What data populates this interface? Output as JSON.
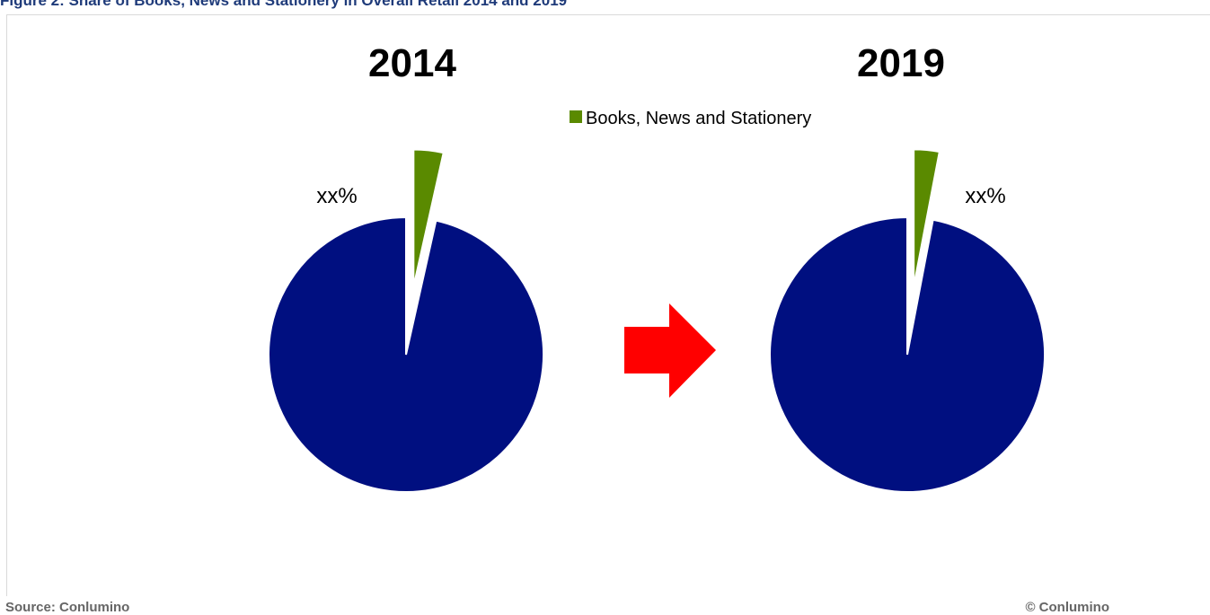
{
  "figure_title": "Figure 2: Share of Books, News and Stationery in Overall Retail 2014 and 2019",
  "source_label": "Source: Conlumino",
  "copyright_label": "© Conlumino",
  "chart_data": [
    {
      "type": "pie",
      "title": "2014",
      "slices": [
        {
          "name": "Books, News and Stationery",
          "value": 3.5,
          "color": "#5a8a00",
          "label": "xx%"
        },
        {
          "name": "",
          "value": 96.5,
          "color": "#000f80",
          "label": ""
        }
      ],
      "legend": {
        "show": false
      }
    },
    {
      "type": "pie",
      "title": "2019",
      "slices": [
        {
          "name": "Books, News and Stationery",
          "value": 3.0,
          "color": "#5a8a00",
          "label": "xx%"
        },
        {
          "name": "",
          "value": 97.0,
          "color": "#000f80",
          "label": ""
        }
      ],
      "legend": {
        "show": true,
        "placement": "top",
        "entries": [
          "Books, News and Stationery"
        ]
      }
    }
  ],
  "arrow_color": "#ff0000"
}
